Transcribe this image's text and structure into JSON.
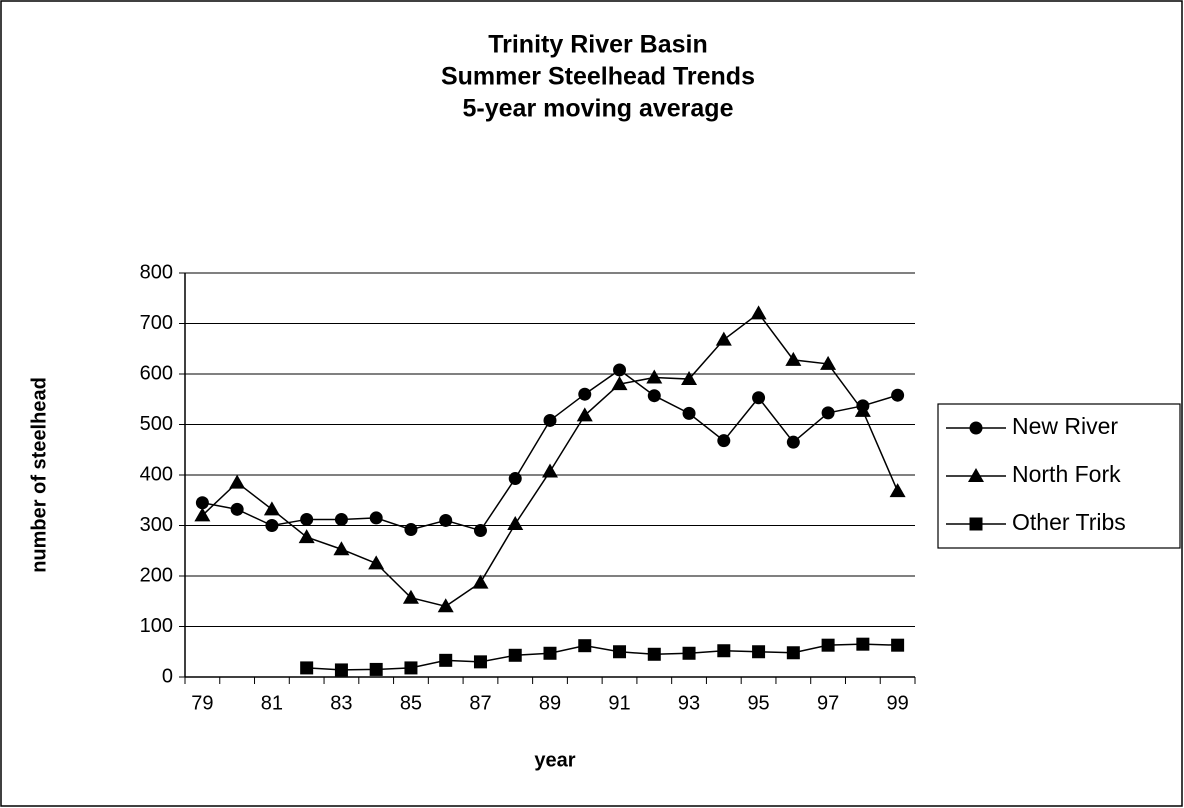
{
  "chart_data": {
    "type": "line",
    "title": [
      "Trinity River Basin",
      "Summer Steelhead Trends",
      "5-year moving average"
    ],
    "xlabel": "year",
    "ylabel": "number of steelhead",
    "categories": [
      "79",
      null,
      "81",
      null,
      "83",
      null,
      "85",
      null,
      "87",
      null,
      "89",
      null,
      "91",
      null,
      "93",
      null,
      "95",
      null,
      "97",
      null,
      "99"
    ],
    "series": [
      {
        "name": "New River",
        "color": "#000000",
        "marker": "circle",
        "values": [
          345,
          332,
          300,
          312,
          312,
          315,
          292,
          310,
          290,
          393,
          508,
          560,
          608,
          557,
          522,
          468,
          553,
          465,
          523,
          537,
          558
        ]
      },
      {
        "name": "North Fork",
        "color": "#000000",
        "marker": "triangle",
        "values": [
          320,
          385,
          332,
          277,
          253,
          225,
          157,
          140,
          187,
          303,
          407,
          518,
          580,
          593,
          590,
          668,
          720,
          628,
          620,
          527,
          368
        ]
      },
      {
        "name": "Other Tribs",
        "color": "#000000",
        "marker": "square",
        "values": [
          null,
          null,
          null,
          18,
          14,
          15,
          18,
          33,
          30,
          43,
          47,
          62,
          50,
          45,
          47,
          52,
          50,
          48,
          63,
          65,
          63
        ]
      }
    ],
    "ylim": [
      0,
      800
    ],
    "yticks": [
      0,
      100,
      200,
      300,
      400,
      500,
      600,
      700,
      800
    ],
    "grid": true,
    "legend": "right"
  }
}
